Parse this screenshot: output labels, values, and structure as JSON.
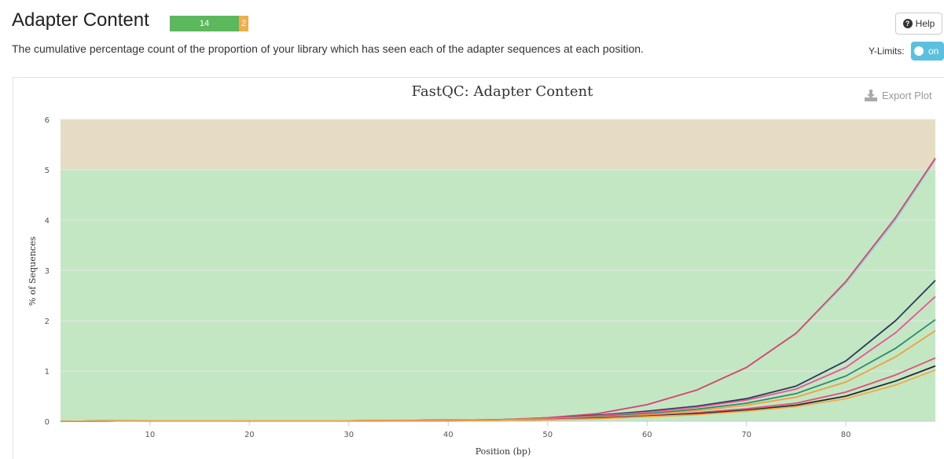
{
  "header": {
    "title": "Adapter Content",
    "status_pass": "14",
    "status_warn": "2",
    "description": "The cumulative percentage count of the proportion of your library which has seen each of the adapter sequences at each position.",
    "help_label": "Help",
    "ylimits_label": "Y-Limits:",
    "ylimits_toggle": "on"
  },
  "colors": {
    "pass": "#5cb85c",
    "warn": "#f0ad4e",
    "band_ok": "#c3e6c3",
    "band_warn": "#e6dcc3"
  },
  "chart_data": {
    "type": "line",
    "title": "FastQC: Adapter Content",
    "export_label": "Export Plot",
    "xlabel": "Position (bp)",
    "ylabel": "% of Sequences",
    "xlim": [
      1,
      89
    ],
    "ylim": [
      0,
      6
    ],
    "xticks": [
      10,
      20,
      30,
      40,
      50,
      60,
      70,
      80
    ],
    "yticks": [
      0,
      1,
      2,
      3,
      4,
      5,
      6
    ],
    "grid": true,
    "bands": [
      {
        "from": 0,
        "to": 5,
        "color": "#c3e6c3"
      },
      {
        "from": 5,
        "to": 6,
        "color": "#e6dcc3"
      }
    ],
    "x": [
      1,
      10,
      20,
      30,
      40,
      45,
      50,
      55,
      60,
      65,
      70,
      75,
      80,
      85,
      89
    ],
    "series": [
      {
        "color": "#8dd3e0",
        "values": [
          0,
          0.01,
          0.01,
          0.01,
          0.02,
          0.03,
          0.07,
          0.15,
          0.33,
          0.62,
          1.07,
          1.75,
          2.75,
          4.0,
          5.2
        ]
      },
      {
        "color": "#d9456b",
        "values": [
          0,
          0.01,
          0.01,
          0.01,
          0.02,
          0.03,
          0.07,
          0.15,
          0.33,
          0.62,
          1.07,
          1.75,
          2.78,
          4.05,
          5.23
        ]
      },
      {
        "color": "#2b3a5a",
        "values": [
          0,
          0.01,
          0.01,
          0.01,
          0.02,
          0.03,
          0.06,
          0.12,
          0.2,
          0.3,
          0.45,
          0.7,
          1.2,
          2.0,
          2.8
        ]
      },
      {
        "color": "#e8559a",
        "values": [
          0,
          0.01,
          0.01,
          0.01,
          0.02,
          0.03,
          0.06,
          0.11,
          0.18,
          0.28,
          0.42,
          0.64,
          1.07,
          1.76,
          2.48
        ]
      },
      {
        "color": "#2e8b6e",
        "values": [
          0,
          0.01,
          0.01,
          0.01,
          0.02,
          0.03,
          0.05,
          0.09,
          0.15,
          0.24,
          0.36,
          0.55,
          0.9,
          1.45,
          2.02
        ]
      },
      {
        "color": "#f0a040",
        "values": [
          0,
          0.01,
          0.01,
          0.01,
          0.02,
          0.03,
          0.05,
          0.08,
          0.13,
          0.21,
          0.32,
          0.48,
          0.78,
          1.28,
          1.8
        ]
      },
      {
        "color": "#e0507a",
        "values": [
          0,
          0.01,
          0.01,
          0.01,
          0.02,
          0.02,
          0.04,
          0.07,
          0.11,
          0.17,
          0.25,
          0.36,
          0.58,
          0.92,
          1.26
        ]
      },
      {
        "color": "#1f2a30",
        "values": [
          0,
          0.01,
          0.01,
          0.01,
          0.01,
          0.02,
          0.03,
          0.06,
          0.1,
          0.15,
          0.22,
          0.32,
          0.5,
          0.8,
          1.1
        ]
      },
      {
        "color": "#f3a945",
        "values": [
          0,
          0.01,
          0.01,
          0.01,
          0.01,
          0.02,
          0.03,
          0.05,
          0.09,
          0.13,
          0.2,
          0.29,
          0.45,
          0.72,
          1.02
        ]
      }
    ]
  }
}
